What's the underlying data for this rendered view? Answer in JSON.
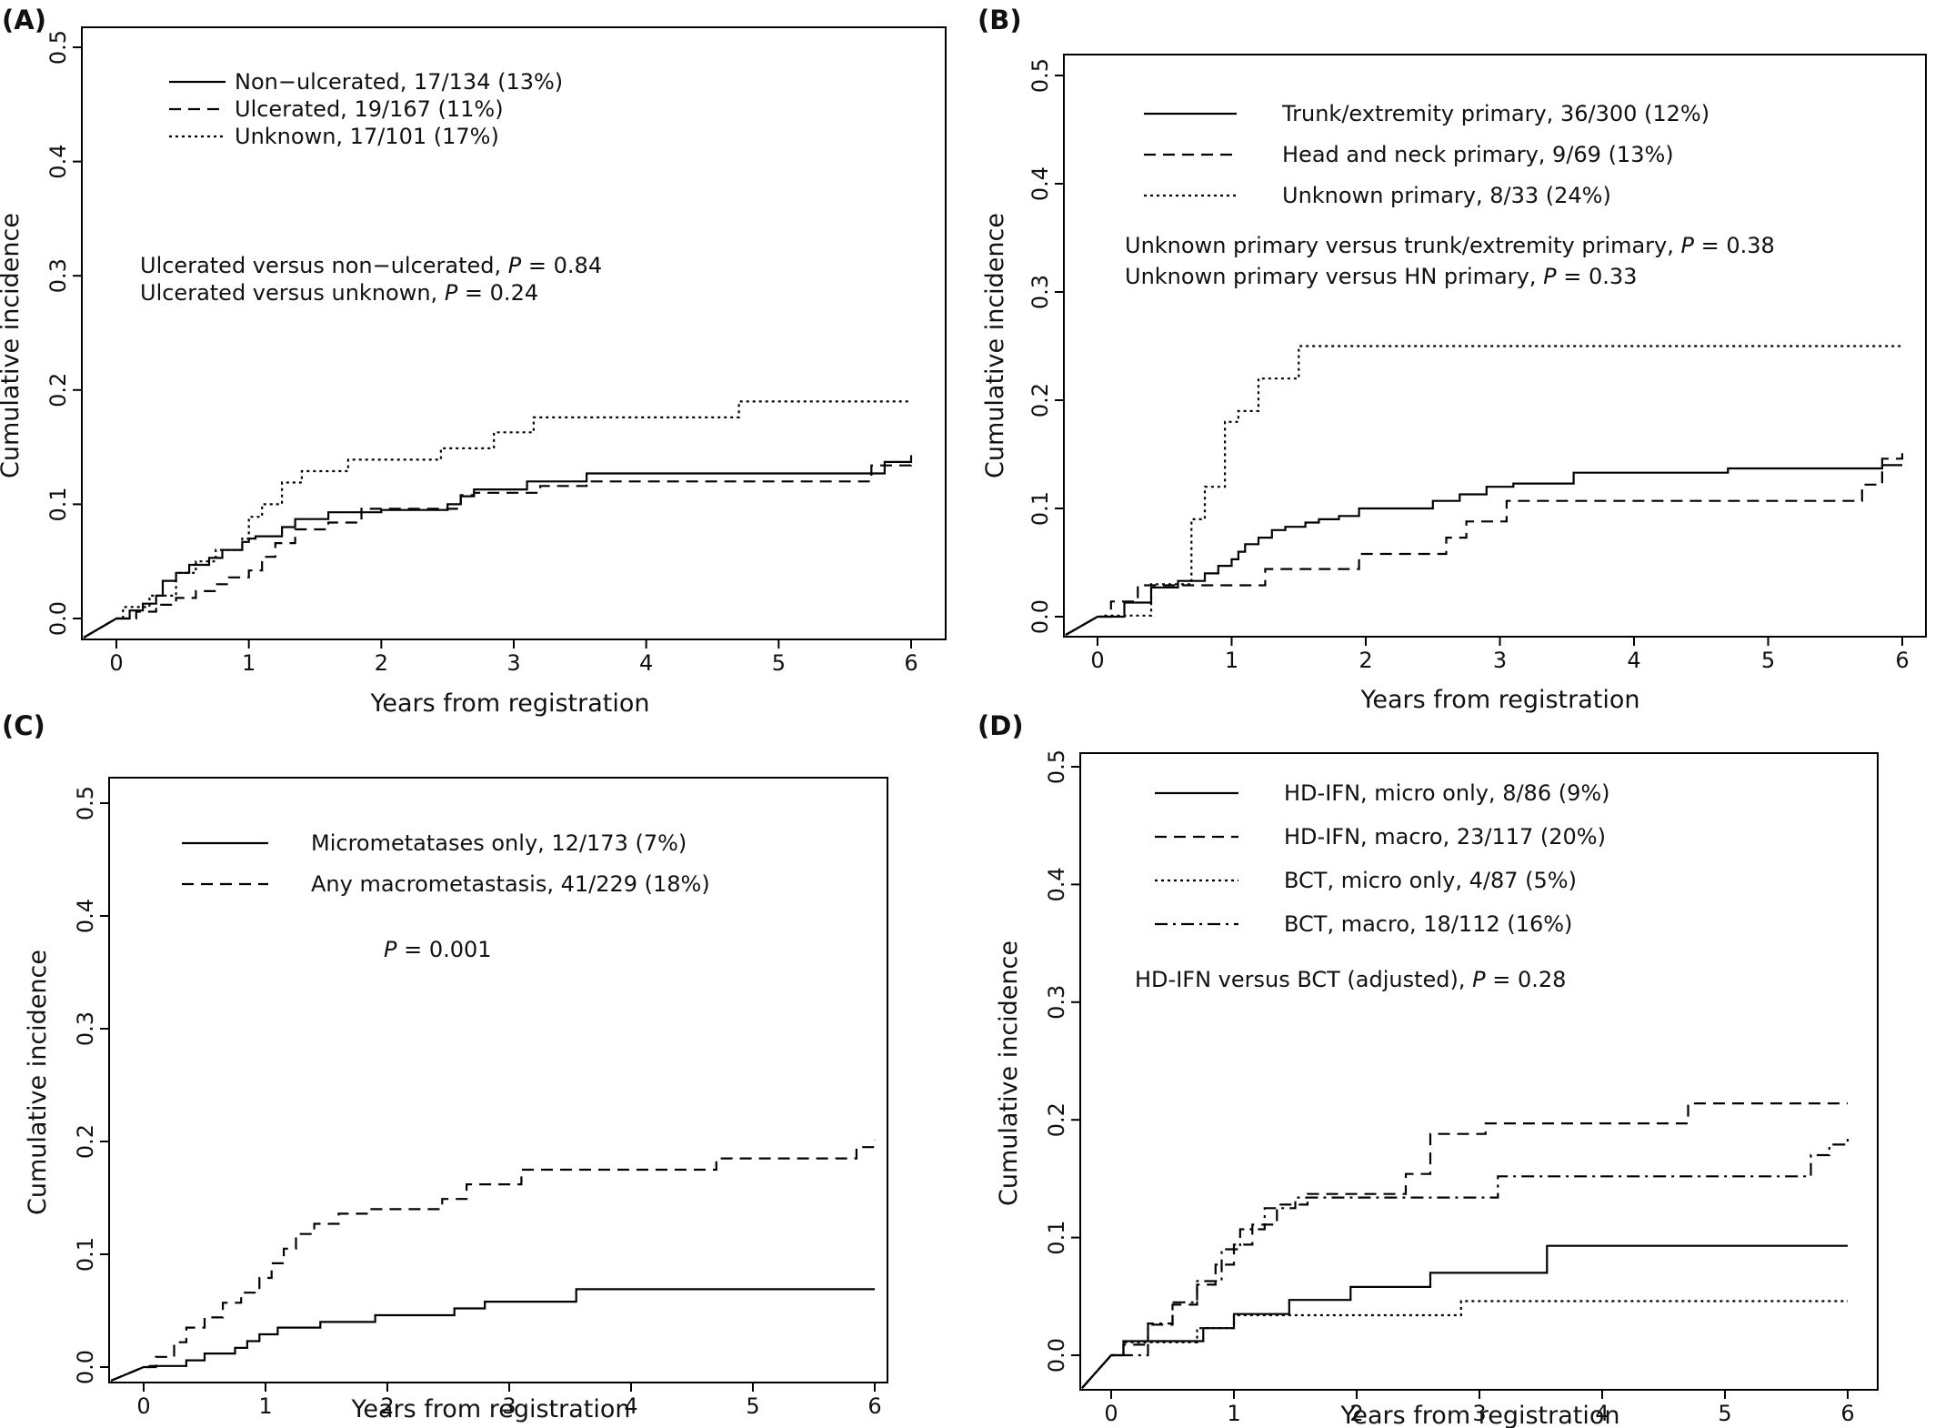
{
  "figure": {
    "panels": [
      {
        "label": "(A)",
        "xlabel": "Years from registration",
        "ylabel": "Cumulative incidence"
      },
      {
        "label": "(B)",
        "xlabel": "Years from registration",
        "ylabel": "Cumulative incidence"
      },
      {
        "label": "(C)",
        "xlabel": "Years from registration",
        "ylabel": "Cumulative incidence"
      },
      {
        "label": "(D)",
        "xlabel": "Years from registration",
        "ylabel": "Cumulative incidence"
      }
    ]
  },
  "chart_data": [
    {
      "type": "line",
      "step": true,
      "panel": "(A)",
      "xlabel": "Years from registration",
      "ylabel": "Cumulative incidence",
      "xlim": [
        0,
        6
      ],
      "ylim": [
        0,
        0.5
      ],
      "xticks": [
        "0",
        "1",
        "2",
        "3",
        "4",
        "5",
        "6"
      ],
      "yticks": [
        "0.0",
        "0.1",
        "0.2",
        "0.3",
        "0.4",
        "0.5"
      ],
      "legend_position": "top-left",
      "annotations": [
        {
          "parts": [
            "Ulcerated versus non−ulcerated, ",
            "P",
            " = 0.84"
          ]
        },
        {
          "parts": [
            "Ulcerated versus unknown, ",
            "P",
            " = 0.24"
          ]
        }
      ],
      "series": [
        {
          "name": "Non−ulcerated, 17/134 (13%)",
          "linestyle": "solid",
          "x": [
            0,
            0.1,
            0.2,
            0.3,
            0.35,
            0.45,
            0.55,
            0.7,
            0.8,
            0.95,
            1.0,
            1.05,
            1.25,
            1.35,
            1.6,
            2.0,
            2.5,
            2.6,
            2.7,
            3.1,
            3.55,
            5.8,
            6.0
          ],
          "y": [
            0,
            0.007,
            0.013,
            0.02,
            0.033,
            0.04,
            0.047,
            0.053,
            0.06,
            0.067,
            0.07,
            0.072,
            0.08,
            0.087,
            0.093,
            0.095,
            0.1,
            0.107,
            0.113,
            0.12,
            0.127,
            0.137,
            0.143
          ]
        },
        {
          "name": "Ulcerated, 19/167 (11%)",
          "linestyle": "dashed",
          "x": [
            0,
            0.15,
            0.3,
            0.45,
            0.6,
            0.75,
            0.85,
            1.0,
            1.1,
            1.2,
            1.35,
            1.6,
            1.85,
            2.6,
            2.7,
            3.2,
            3.55,
            5.7,
            6.0
          ],
          "y": [
            0,
            0.006,
            0.012,
            0.018,
            0.024,
            0.03,
            0.036,
            0.042,
            0.054,
            0.066,
            0.078,
            0.084,
            0.096,
            0.108,
            0.11,
            0.116,
            0.12,
            0.134,
            0.136
          ]
        },
        {
          "name": "Unknown, 17/101 (17%)",
          "linestyle": "dotted",
          "x": [
            0,
            0.05,
            0.25,
            0.45,
            0.6,
            0.75,
            0.95,
            1.0,
            1.1,
            1.25,
            1.4,
            1.75,
            2.45,
            2.85,
            3.15,
            4.7,
            6.0
          ],
          "y": [
            0,
            0.01,
            0.02,
            0.04,
            0.05,
            0.06,
            0.07,
            0.089,
            0.1,
            0.119,
            0.129,
            0.139,
            0.149,
            0.163,
            0.176,
            0.19,
            0.19
          ]
        }
      ]
    },
    {
      "type": "line",
      "step": true,
      "panel": "(B)",
      "xlabel": "Years from registration",
      "ylabel": "Cumulative incidence",
      "xlim": [
        0,
        6
      ],
      "ylim": [
        0,
        0.5
      ],
      "xticks": [
        "0",
        "1",
        "2",
        "3",
        "4",
        "5",
        "6"
      ],
      "yticks": [
        "0.0",
        "0.1",
        "0.2",
        "0.3",
        "0.4",
        "0.5"
      ],
      "legend_position": "top-left",
      "annotations": [
        {
          "parts": [
            "Unknown primary versus trunk/extremity primary, ",
            "P",
            " = 0.38"
          ]
        },
        {
          "parts": [
            "Unknown primary versus HN primary, ",
            "P",
            " = 0.33"
          ]
        }
      ],
      "series": [
        {
          "name": "Trunk/extremity primary, 36/300 (12%)",
          "linestyle": "solid",
          "x": [
            0,
            0.2,
            0.4,
            0.6,
            0.8,
            0.9,
            1.0,
            1.05,
            1.1,
            1.2,
            1.3,
            1.4,
            1.55,
            1.65,
            1.8,
            1.95,
            2.5,
            2.7,
            2.9,
            3.1,
            3.55,
            4.7,
            5.85,
            6.0
          ],
          "y": [
            0,
            0.013,
            0.027,
            0.033,
            0.04,
            0.047,
            0.053,
            0.06,
            0.067,
            0.073,
            0.08,
            0.083,
            0.087,
            0.09,
            0.093,
            0.1,
            0.107,
            0.113,
            0.12,
            0.123,
            0.133,
            0.137,
            0.14,
            0.14
          ]
        },
        {
          "name": "Head and neck primary, 9/69 (13%)",
          "linestyle": "dashed",
          "x": [
            0,
            0.1,
            0.3,
            0.55,
            1.25,
            1.95,
            2.6,
            2.75,
            3.05,
            5.7,
            5.85,
            6.0
          ],
          "y": [
            0,
            0.014,
            0.029,
            0.029,
            0.044,
            0.058,
            0.073,
            0.088,
            0.107,
            0.122,
            0.146,
            0.155
          ]
        },
        {
          "name": "Unknown primary, 8/33 (24%)",
          "linestyle": "dotted",
          "x": [
            0,
            0.05,
            0.4,
            0.7,
            0.8,
            0.95,
            1.05,
            1.2,
            1.5,
            6.0
          ],
          "y": [
            0,
            0.001,
            0.03,
            0.09,
            0.12,
            0.18,
            0.19,
            0.22,
            0.25,
            0.25
          ]
        }
      ]
    },
    {
      "type": "line",
      "step": true,
      "panel": "(C)",
      "xlabel": "Years from registration",
      "ylabel": "Cumulative incidence",
      "xlim": [
        0,
        6
      ],
      "ylim": [
        0,
        0.5
      ],
      "xticks": [
        "0",
        "1",
        "2",
        "3",
        "4",
        "5",
        "6"
      ],
      "yticks": [
        "0.0",
        "0.1",
        "0.2",
        "0.3",
        "0.4",
        "0.5"
      ],
      "legend_position": "top-left",
      "annotations": [
        {
          "parts": [
            "",
            "P",
            " = 0.001"
          ]
        }
      ],
      "series": [
        {
          "name": "Micrometatases only, 12/173 (7%)",
          "linestyle": "solid",
          "x": [
            0,
            0.05,
            0.35,
            0.5,
            0.75,
            0.85,
            0.95,
            1.1,
            1.45,
            1.9,
            2.55,
            2.8,
            3.55,
            6.0
          ],
          "y": [
            0,
            0.001,
            0.006,
            0.012,
            0.017,
            0.023,
            0.029,
            0.035,
            0.04,
            0.046,
            0.052,
            0.058,
            0.069,
            0.069
          ]
        },
        {
          "name": "Any macrometastasis, 41/229 (18%)",
          "linestyle": "dashed",
          "x": [
            0,
            0.1,
            0.25,
            0.35,
            0.5,
            0.65,
            0.8,
            0.95,
            1.05,
            1.15,
            1.25,
            1.4,
            1.6,
            1.85,
            2.45,
            2.65,
            3.1,
            4.7,
            5.85,
            6.0
          ],
          "y": [
            0,
            0.009,
            0.022,
            0.035,
            0.044,
            0.057,
            0.066,
            0.079,
            0.092,
            0.105,
            0.118,
            0.127,
            0.136,
            0.14,
            0.149,
            0.162,
            0.175,
            0.185,
            0.195,
            0.201
          ]
        }
      ]
    },
    {
      "type": "line",
      "step": true,
      "panel": "(D)",
      "xlabel": "Years from registration",
      "ylabel": "Cumulative incidence",
      "xlim": [
        0,
        6
      ],
      "ylim": [
        0,
        0.5
      ],
      "xticks": [
        "0",
        "1",
        "2",
        "3",
        "4",
        "5",
        "6"
      ],
      "yticks": [
        "0.0",
        "0.1",
        "0.2",
        "0.3",
        "0.4",
        "0.5"
      ],
      "legend_position": "top-left",
      "annotations": [
        {
          "parts": [
            "HD-IFN versus BCT (adjusted), ",
            "P",
            " = 0.28"
          ]
        }
      ],
      "series": [
        {
          "name": "HD-IFN, micro only, 8/86 (9%)",
          "linestyle": "solid",
          "x": [
            0,
            0.1,
            0.3,
            0.75,
            1.0,
            1.45,
            1.95,
            2.6,
            3.55,
            6.0
          ],
          "y": [
            0,
            0.012,
            0.012,
            0.023,
            0.035,
            0.047,
            0.058,
            0.07,
            0.093,
            0.093
          ]
        },
        {
          "name": "HD-IFN, macro, 23/117 (20%)",
          "linestyle": "dashed",
          "x": [
            0,
            0.1,
            0.3,
            0.5,
            0.7,
            0.85,
            1.0,
            1.15,
            1.35,
            1.6,
            2.4,
            2.6,
            3.05,
            4.7,
            6.0
          ],
          "y": [
            0,
            0.009,
            0.026,
            0.043,
            0.06,
            0.077,
            0.094,
            0.111,
            0.128,
            0.137,
            0.154,
            0.188,
            0.197,
            0.214,
            0.214
          ]
        },
        {
          "name": "BCT, micro only, 4/87 (5%)",
          "linestyle": "dotted",
          "x": [
            0,
            0.1,
            0.7,
            1.0,
            2.85,
            6.0
          ],
          "y": [
            0,
            0.011,
            0.023,
            0.034,
            0.046,
            0.046
          ]
        },
        {
          "name": "BCT, macro, 18/112 (16%)",
          "linestyle": "dashdot",
          "x": [
            0,
            0.3,
            0.5,
            0.7,
            0.9,
            1.05,
            1.25,
            1.5,
            3.15,
            5.7,
            5.85,
            6.0
          ],
          "y": [
            0,
            0.027,
            0.045,
            0.063,
            0.09,
            0.107,
            0.125,
            0.134,
            0.152,
            0.17,
            0.179,
            0.188
          ]
        }
      ]
    }
  ]
}
